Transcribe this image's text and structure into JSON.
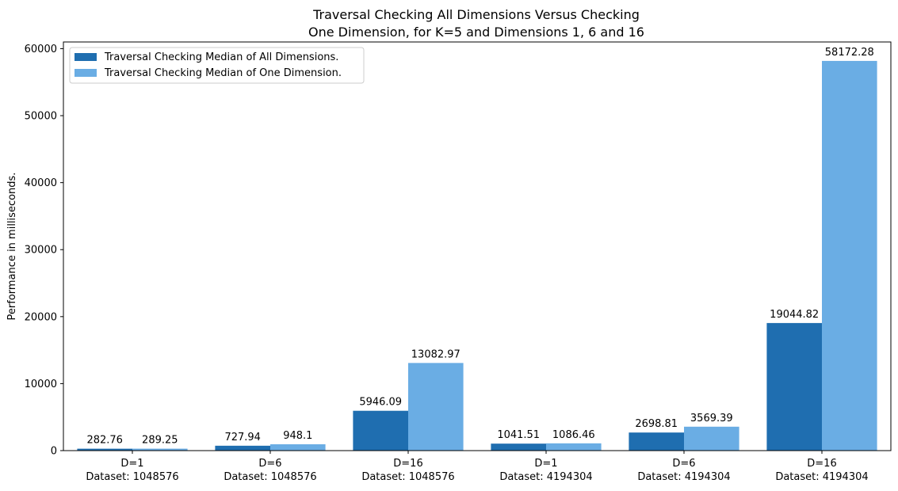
{
  "chart_data": {
    "type": "bar",
    "title_line1": "Traversal Checking All Dimensions Versus Checking",
    "title_line2": "One Dimension, for K=5 and Dimensions 1, 6 and 16",
    "ylabel": "Performance in milliseconds.",
    "xlabel": "",
    "ylim": [
      0,
      61000
    ],
    "yticks": [
      0,
      10000,
      20000,
      30000,
      40000,
      50000,
      60000
    ],
    "grid": false,
    "legend_position": "top-left",
    "categories": [
      [
        "D=1",
        "Dataset: 1048576"
      ],
      [
        "D=6",
        "Dataset: 1048576"
      ],
      [
        "D=16",
        "Dataset: 1048576"
      ],
      [
        "D=1",
        "Dataset: 4194304"
      ],
      [
        "D=6",
        "Dataset: 4194304"
      ],
      [
        "D=16",
        "Dataset: 4194304"
      ]
    ],
    "series": [
      {
        "name": "Traversal Checking Median of All Dimensions.",
        "color": "#1f6eb0",
        "values": [
          282.76,
          727.94,
          5946.09,
          1041.51,
          2698.81,
          19044.82
        ]
      },
      {
        "name": "Traversal Checking Median of One Dimension.",
        "color": "#6aade4",
        "values": [
          289.25,
          948.1,
          13082.97,
          1086.46,
          3569.39,
          58172.28
        ]
      }
    ]
  }
}
